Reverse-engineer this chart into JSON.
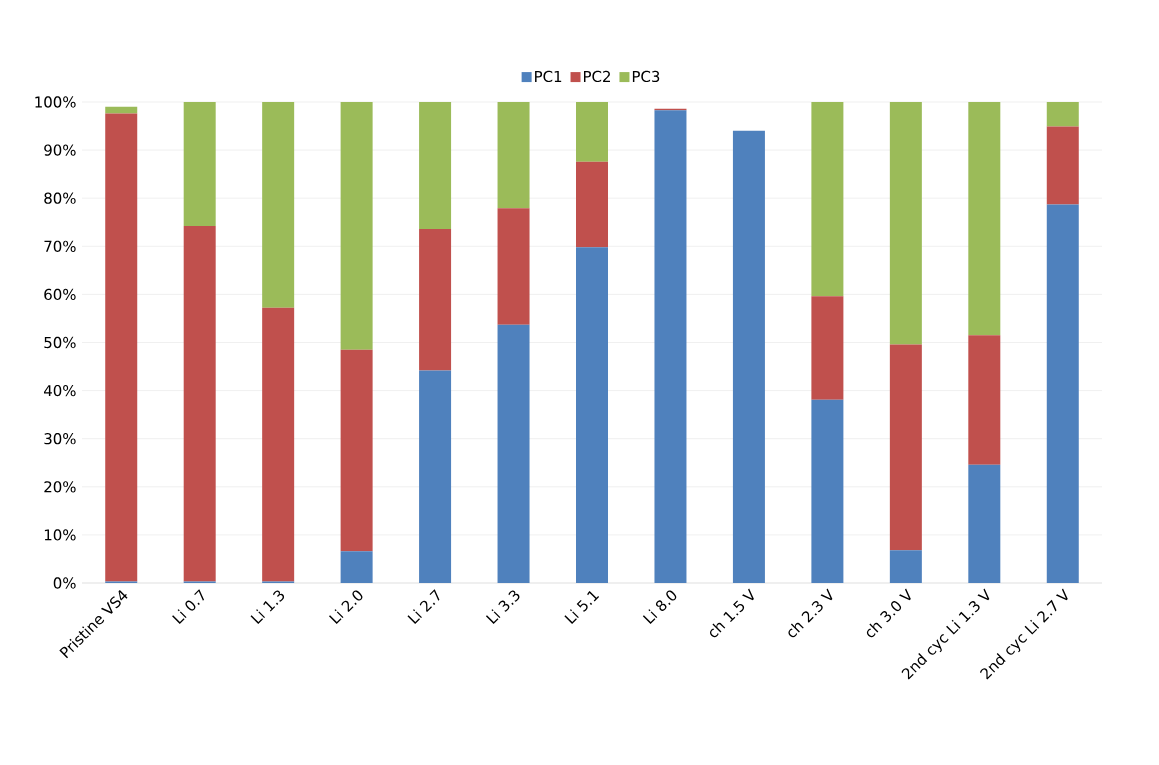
{
  "chart_data": {
    "type": "bar",
    "stacked": true,
    "categories": [
      "Pristine  VS4",
      "Li 0.7",
      "Li 1.3",
      "Li 2.0",
      "Li 2.7",
      "Li 3.3",
      "Li 5.1",
      "Li 8.0",
      "ch 1.5 V",
      "ch 2.3 V",
      "ch 3.0 V",
      "2nd cyc Li 1.3 V",
      "2nd cyc Li 2.7 V"
    ],
    "series": [
      {
        "name": "PC1",
        "color": "#4f81bd",
        "values": [
          0.3,
          0.3,
          0.3,
          6.6,
          44.2,
          53.7,
          69.8,
          98.3,
          94.0,
          38.1,
          6.8,
          24.6,
          78.7
        ]
      },
      {
        "name": "PC2",
        "color": "#c0504d",
        "values": [
          97.3,
          73.9,
          56.9,
          41.9,
          29.4,
          24.2,
          17.8,
          0.3,
          0,
          21.5,
          42.8,
          26.9,
          16.2
        ]
      },
      {
        "name": "PC3",
        "color": "#9bbb59",
        "values": [
          1.4,
          25.8,
          42.8,
          51.5,
          26.4,
          22.1,
          12.4,
          0,
          0,
          40.4,
          50.4,
          48.5,
          5.1
        ]
      }
    ],
    "ylim": [
      0,
      100
    ],
    "yticks": [
      {
        "value": 0,
        "label": "0%"
      },
      {
        "value": 10,
        "label": "10%"
      },
      {
        "value": 20,
        "label": "20%"
      },
      {
        "value": 30,
        "label": "30%"
      },
      {
        "value": 40,
        "label": "40%"
      },
      {
        "value": 50,
        "label": "50%"
      },
      {
        "value": 60,
        "label": "60%"
      },
      {
        "value": 70,
        "label": "70%"
      },
      {
        "value": 80,
        "label": "80%"
      },
      {
        "value": 90,
        "label": "90%"
      },
      {
        "value": 100,
        "label": "100%"
      }
    ],
    "grid": "y",
    "legend": "top"
  }
}
